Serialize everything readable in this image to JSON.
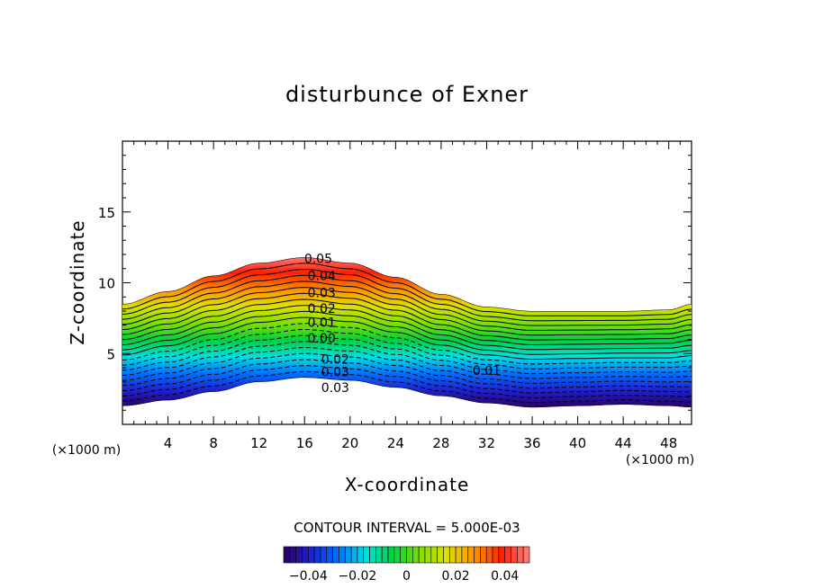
{
  "chart_data": {
    "type": "contour",
    "title": "disturbunce of Exner",
    "xlabel": "X-coordinate",
    "ylabel": "Z-coordinate",
    "x_unit_left": "(×1000 m)",
    "x_unit_right": "(×1000 m)",
    "xlim": [
      0,
      50
    ],
    "ylim": [
      0,
      20
    ],
    "xticks": [
      4,
      8,
      12,
      16,
      20,
      24,
      28,
      32,
      36,
      40,
      44,
      48
    ],
    "xtick_labels": [
      "4",
      "8",
      "12",
      "16",
      "20",
      "24",
      "28",
      "32",
      "36",
      "40",
      "44",
      "48"
    ],
    "yticks": [
      5,
      10,
      15
    ],
    "ytick_labels": [
      "5",
      "10",
      "15"
    ],
    "contour_interval_text": "CONTOUR INTERVAL = 5.000E-03",
    "contour_interval": 0.005,
    "level_range": [
      -0.05,
      0.05
    ],
    "field_top_km": {
      "x": [
        0,
        4,
        8,
        12,
        16,
        20,
        24,
        28,
        32,
        36,
        40,
        44,
        48,
        50
      ],
      "z": [
        8.5,
        9.4,
        10.5,
        11.4,
        11.8,
        11.4,
        10.4,
        9.2,
        8.3,
        8.0,
        8.0,
        8.0,
        8.1,
        8.5
      ]
    },
    "field_bottom_km": {
      "x": [
        0,
        4,
        8,
        12,
        16,
        20,
        24,
        28,
        32,
        36,
        40,
        44,
        48,
        50
      ],
      "z": [
        1.3,
        1.7,
        2.3,
        3.0,
        3.3,
        3.1,
        2.6,
        2.0,
        1.5,
        1.2,
        1.3,
        1.4,
        1.3,
        1.2
      ]
    },
    "contour_labels": [
      {
        "text": "0.05",
        "x": 17.2,
        "z": 11.7
      },
      {
        "text": "0.04",
        "x": 17.5,
        "z": 10.5
      },
      {
        "text": "0.03",
        "x": 17.5,
        "z": 9.3
      },
      {
        "text": "0.02",
        "x": 17.5,
        "z": 8.2
      },
      {
        "text": "0.01",
        "x": 17.5,
        "z": 7.2
      },
      {
        "text": "0.00",
        "x": 17.5,
        "z": 6.1
      },
      {
        "text": "0.02",
        "x": 18.7,
        "z": 4.6
      },
      {
        "text": "0.03",
        "x": 18.7,
        "z": 3.7
      },
      {
        "text": "0.03",
        "x": 18.7,
        "z": 2.6
      },
      {
        "text": "0.01",
        "x": 32.0,
        "z": 3.8
      }
    ],
    "colorbar": {
      "ticks": [
        -0.04,
        -0.02,
        0,
        0.02,
        0.04
      ],
      "tick_labels": [
        "−0.04",
        "−0.02",
        "0",
        "0.02",
        "0.04"
      ],
      "colors": [
        "#2a0060",
        "#2020d0",
        "#0070ff",
        "#00e0e0",
        "#00d040",
        "#80e000",
        "#e0e000",
        "#ff9000",
        "#ff2000",
        "#ff8080"
      ]
    }
  }
}
